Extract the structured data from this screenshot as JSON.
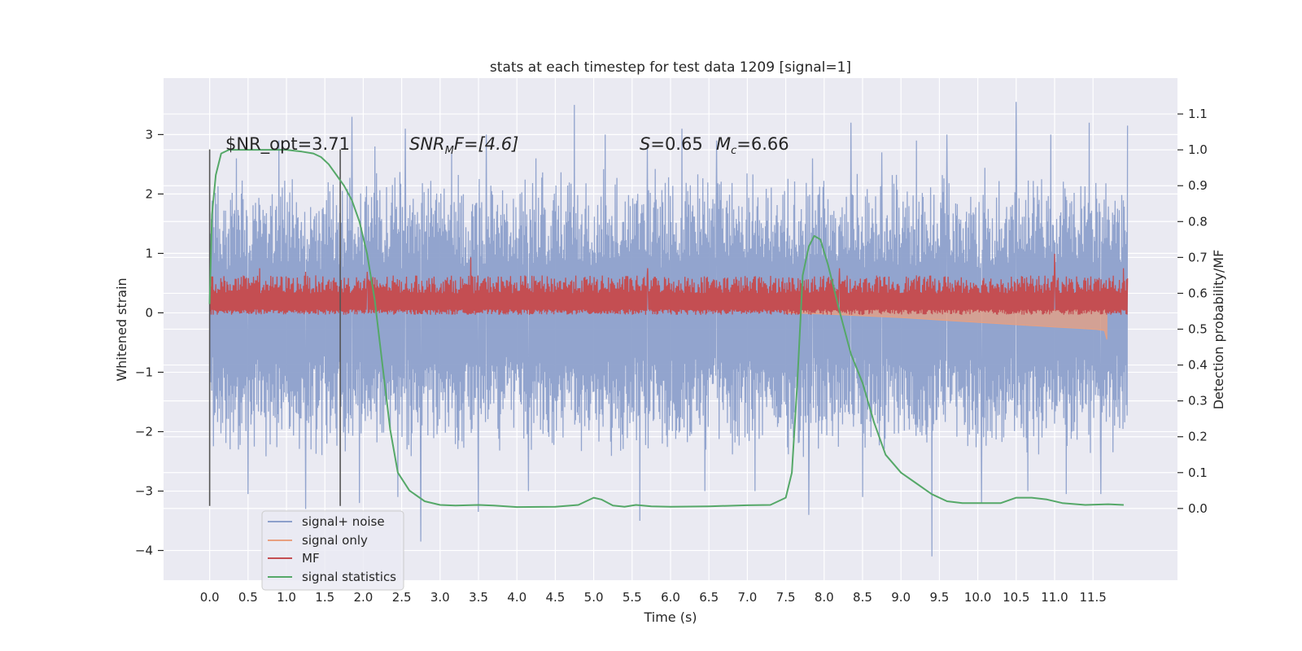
{
  "chart_data": {
    "type": "line",
    "title": "stats at each timestep for test data 1209 [signal=1]",
    "xlabel": "Time (s)",
    "ylabel": "Whitened strain",
    "y2label": "Detection probability/MF",
    "xlim": [
      -0.6,
      12.6
    ],
    "ylim": [
      -4.5,
      3.95
    ],
    "y2lim": [
      -0.2,
      1.2
    ],
    "xticks": [
      0.0,
      0.5,
      1.0,
      1.5,
      2.0,
      2.5,
      3.0,
      3.5,
      4.0,
      4.5,
      5.0,
      5.5,
      6.0,
      6.5,
      7.0,
      7.5,
      8.0,
      8.5,
      9.0,
      9.5,
      10.0,
      10.5,
      11.0,
      11.5
    ],
    "xtick_labels": [
      "0.0",
      "0.5",
      "1.0",
      "1.5",
      "2.0",
      "2.5",
      "3.0",
      "3.5",
      "4.0",
      "4.5",
      "5.0",
      "5.5",
      "6.0",
      "6.5",
      "7.0",
      "7.5",
      "8.0",
      "8.5",
      "9.0",
      "9.5",
      "10.0",
      "10.5",
      "11.0",
      "11.5"
    ],
    "yticks": [
      3,
      2,
      1,
      0,
      -1,
      -2,
      -3,
      -4
    ],
    "ytick_labels": [
      "3",
      "2",
      "1",
      "0",
      "−1",
      "−2",
      "−3",
      "−4"
    ],
    "y2ticks": [
      1.1,
      1.0,
      0.9,
      0.8,
      0.7,
      0.6,
      0.5,
      0.4,
      0.3,
      0.2,
      0.1,
      0.0
    ],
    "y2tick_labels": [
      "1.1",
      "1.0",
      "0.9",
      "0.8",
      "0.7",
      "0.6",
      "0.5",
      "0.4",
      "0.3",
      "0.2",
      "0.1",
      "0.0"
    ],
    "grid": true,
    "legend_position": "lower-left",
    "annotations": {
      "snr_opt": "$NR_opt=3.71",
      "snr_mf_main": "SNR",
      "snr_mf_sub": "M",
      "snr_mf_rest": "F=[4.6]",
      "s_main": "S",
      "s_rest": "=0.65",
      "mc_main": "M",
      "mc_sub": "c",
      "mc_rest": "=6.66"
    },
    "vlines": [
      {
        "x": 0.0,
        "y_range": [
          -3.25,
          2.75
        ]
      },
      {
        "x": 1.7,
        "y_range": [
          -3.25,
          2.75
        ]
      }
    ],
    "series": [
      {
        "name": "signal+ noise",
        "color": "#8da0cb",
        "axis": "left",
        "band": {
          "x_range": [
            0.0,
            11.95
          ],
          "typical_range": [
            -1.5,
            1.5
          ]
        },
        "peaks_x": [
          0.35,
          0.9,
          1.85,
          2.15,
          2.55,
          3.15,
          3.6,
          4.25,
          4.75,
          5.15,
          5.7,
          6.15,
          6.6,
          7.1,
          7.85,
          8.35,
          8.75,
          9.2,
          9.6,
          10.05,
          10.5,
          10.95,
          11.45,
          11.95
        ],
        "peaks_y": [
          2.6,
          2.9,
          3.3,
          2.8,
          3.1,
          2.7,
          3.0,
          2.6,
          3.5,
          3.0,
          2.8,
          3.1,
          2.9,
          3.0,
          2.6,
          3.2,
          2.7,
          2.9,
          3.0,
          2.8,
          3.55,
          3.0,
          3.2,
          3.15
        ],
        "troughs_x": [
          0.5,
          1.25,
          1.95,
          2.45,
          2.75,
          3.5,
          4.15,
          5.6,
          6.45,
          7.1,
          7.8,
          8.5,
          9.4,
          10.05,
          10.65,
          11.15,
          11.6
        ],
        "troughs_y": [
          -3.05,
          -3.3,
          -3.2,
          -3.1,
          -3.85,
          -3.35,
          -3.0,
          -3.5,
          -3.0,
          -3.0,
          -3.4,
          -3.1,
          -4.1,
          -3.2,
          -3.0,
          -3.05,
          -3.05
        ]
      },
      {
        "name": "signal only",
        "color": "#e8a080",
        "axis": "left",
        "x": [
          7.5,
          8.0,
          8.5,
          9.0,
          9.5,
          10.0,
          10.5,
          11.0,
          11.3,
          11.55,
          11.65,
          11.68
        ],
        "y": [
          0.0,
          -0.02,
          -0.05,
          -0.08,
          -0.12,
          -0.16,
          -0.2,
          -0.24,
          -0.26,
          -0.28,
          -0.3,
          -0.45
        ]
      },
      {
        "name": "MF",
        "color": "#c44e52",
        "axis": "right",
        "band": {
          "x_range": [
            0.0,
            11.95
          ],
          "typical_range": [
            0.55,
            0.65
          ],
          "low": 0.54
        },
        "peaks_x": [
          0.65,
          1.25,
          2.05,
          3.4,
          5.7,
          8.2,
          11.0,
          11.9
        ],
        "peaks_y": [
          0.67,
          0.66,
          0.66,
          0.7,
          0.67,
          0.67,
          0.71,
          0.67
        ]
      },
      {
        "name": "signal statistics",
        "color": "#55a868",
        "axis": "right",
        "x": [
          0.0,
          0.03,
          0.08,
          0.15,
          0.25,
          0.4,
          0.6,
          0.8,
          1.0,
          1.2,
          1.35,
          1.45,
          1.55,
          1.65,
          1.75,
          1.85,
          1.95,
          2.05,
          2.15,
          2.25,
          2.35,
          2.45,
          2.6,
          2.8,
          3.0,
          3.2,
          3.5,
          3.7,
          4.0,
          4.5,
          4.8,
          4.9,
          5.0,
          5.1,
          5.25,
          5.4,
          5.55,
          5.75,
          6.0,
          6.5,
          7.0,
          7.3,
          7.5,
          7.58,
          7.65,
          7.72,
          7.8,
          7.87,
          7.95,
          8.05,
          8.2,
          8.35,
          8.5,
          8.65,
          8.8,
          9.0,
          9.2,
          9.4,
          9.6,
          9.8,
          10.0,
          10.3,
          10.5,
          10.7,
          10.9,
          11.1,
          11.4,
          11.7,
          11.9
        ],
        "y": [
          0.57,
          0.82,
          0.93,
          0.99,
          1.0,
          1.0,
          1.0,
          1.0,
          1.0,
          0.995,
          0.99,
          0.98,
          0.96,
          0.93,
          0.9,
          0.86,
          0.8,
          0.71,
          0.58,
          0.4,
          0.22,
          0.1,
          0.05,
          0.02,
          0.01,
          0.008,
          0.01,
          0.008,
          0.004,
          0.005,
          0.01,
          0.02,
          0.03,
          0.025,
          0.008,
          0.005,
          0.01,
          0.006,
          0.005,
          0.006,
          0.009,
          0.01,
          0.03,
          0.1,
          0.35,
          0.65,
          0.73,
          0.76,
          0.75,
          0.68,
          0.55,
          0.43,
          0.35,
          0.24,
          0.15,
          0.1,
          0.07,
          0.04,
          0.02,
          0.015,
          0.015,
          0.015,
          0.03,
          0.03,
          0.025,
          0.015,
          0.01,
          0.012,
          0.01
        ]
      }
    ]
  }
}
